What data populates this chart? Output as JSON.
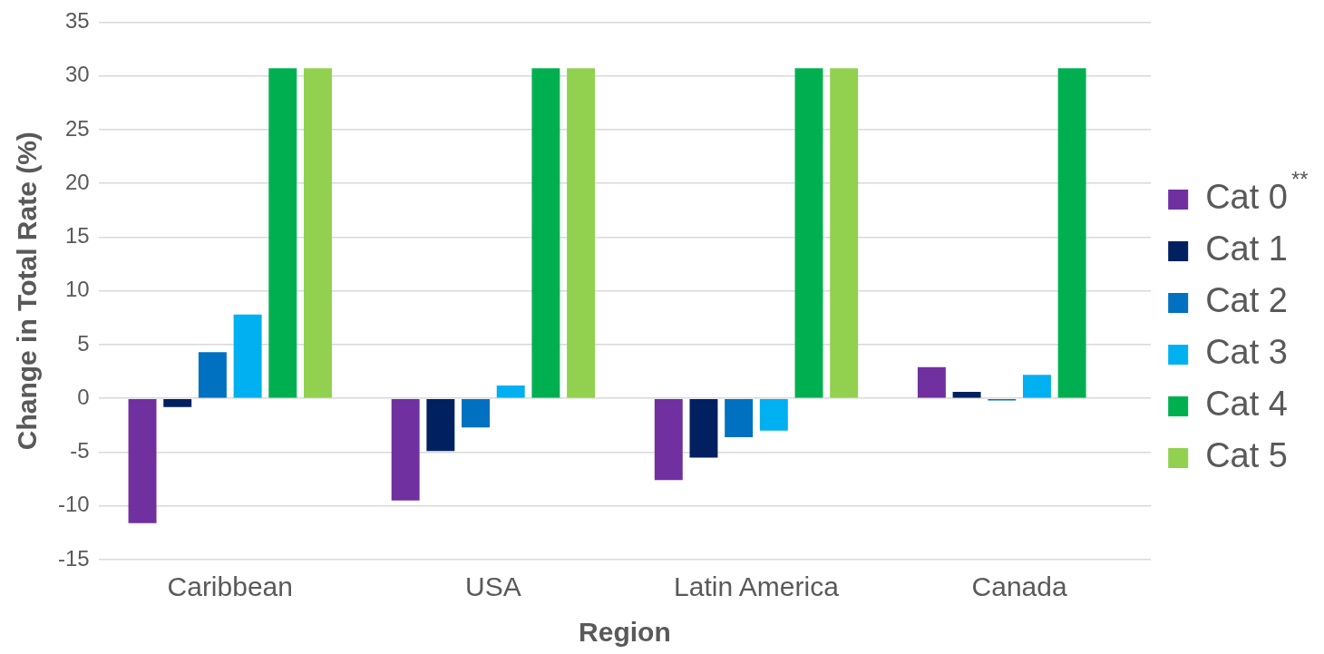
{
  "chart_data": {
    "type": "bar",
    "xlabel": "Region",
    "ylabel": "Change in Total Rate (%)",
    "categories": [
      "Caribbean",
      "USA",
      "Latin America",
      "Canada"
    ],
    "series": [
      {
        "name": "Cat 0",
        "color": "#7030a0",
        "values": [
          -11.6,
          -9.5,
          -7.6,
          2.9
        ]
      },
      {
        "name": "Cat 1",
        "color": "#002060",
        "values": [
          -0.8,
          -4.9,
          -5.5,
          0.6
        ]
      },
      {
        "name": "Cat 2",
        "color": "#0070c0",
        "values": [
          4.3,
          -2.7,
          -3.6,
          -0.2
        ]
      },
      {
        "name": "Cat 3",
        "color": "#00b0f0",
        "values": [
          7.8,
          1.2,
          -3.0,
          2.2
        ]
      },
      {
        "name": "Cat 4",
        "color": "#00b050",
        "values": [
          30.7,
          30.7,
          30.7,
          30.7
        ]
      },
      {
        "name": "Cat 5",
        "color": "#92d050",
        "values": [
          30.7,
          30.7,
          30.7,
          null
        ]
      }
    ],
    "ylim": [
      -15,
      35
    ],
    "yticks": [
      -15,
      -10,
      -5,
      0,
      5,
      10,
      15,
      20,
      25,
      30,
      35
    ],
    "grid": "y",
    "legend": "right",
    "annotations": [
      "**"
    ]
  }
}
